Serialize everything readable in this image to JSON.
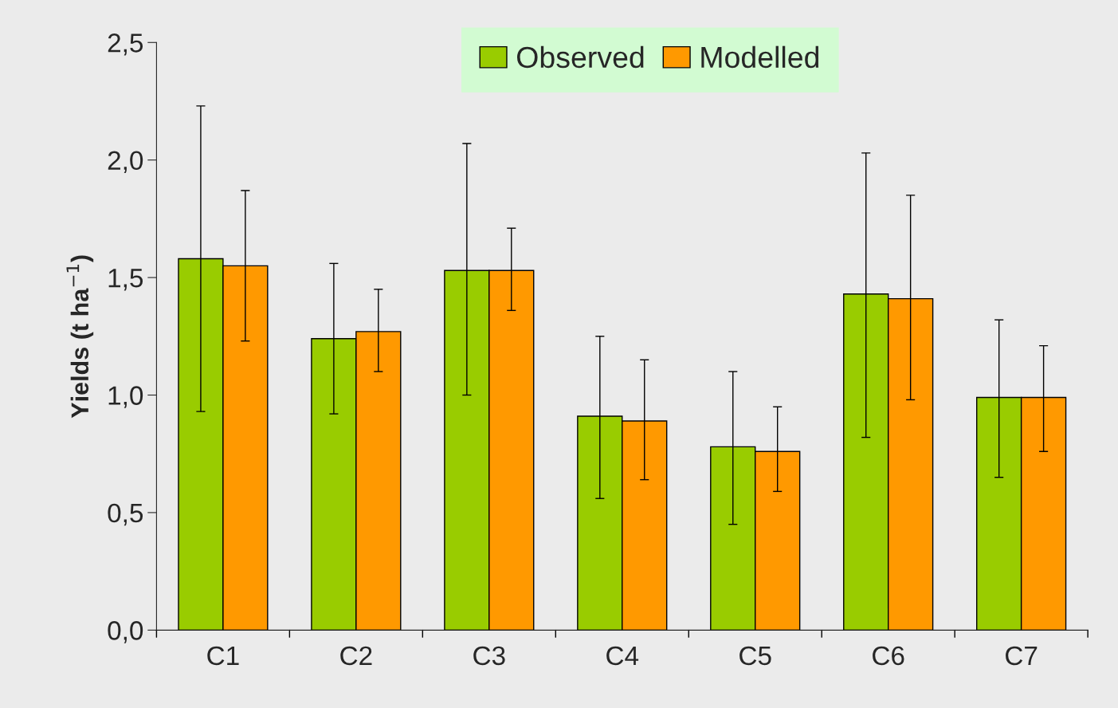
{
  "chart_data": {
    "type": "bar",
    "ylabel": "Yields (t ha$^{−1}$)",
    "categories": [
      "C1",
      "C2",
      "C3",
      "C4",
      "C5",
      "C6",
      "C7"
    ],
    "series": [
      {
        "name": "Observed",
        "color": "#99cc00",
        "values": [
          1.58,
          1.24,
          1.53,
          0.91,
          0.78,
          1.43,
          0.99
        ],
        "errors": [
          [
            0.93,
            2.23
          ],
          [
            0.92,
            1.56
          ],
          [
            1.0,
            2.07
          ],
          [
            0.56,
            1.25
          ],
          [
            0.45,
            1.1
          ],
          [
            0.82,
            2.03
          ],
          [
            0.65,
            1.32
          ]
        ]
      },
      {
        "name": "Modelled",
        "color": "#ff9900",
        "values": [
          1.55,
          1.27,
          1.53,
          0.89,
          0.76,
          1.41,
          0.99
        ],
        "errors": [
          [
            1.23,
            1.87
          ],
          [
            1.1,
            1.45
          ],
          [
            1.36,
            1.71
          ],
          [
            0.64,
            1.15
          ],
          [
            0.59,
            0.95
          ],
          [
            0.98,
            1.85
          ],
          [
            0.76,
            1.21
          ]
        ]
      }
    ],
    "ylim": [
      0,
      2.5
    ],
    "yticks": [
      {
        "value": 0,
        "label": "0,0"
      },
      {
        "value": 0.5,
        "label": "0,5"
      },
      {
        "value": 1,
        "label": "1,0"
      },
      {
        "value": 1.5,
        "label": "1,5"
      },
      {
        "value": 2,
        "label": "2,0"
      },
      {
        "value": 2.5,
        "label": "2,5"
      }
    ],
    "grid": false,
    "legend": "top"
  }
}
